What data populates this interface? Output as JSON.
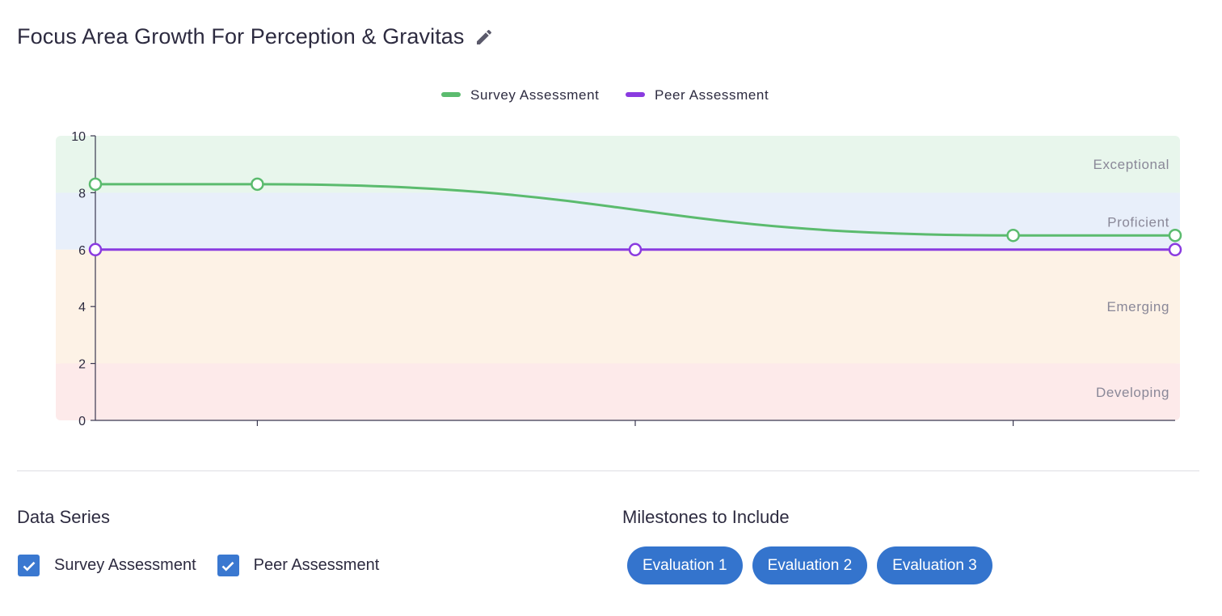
{
  "header": {
    "title": "Focus Area Growth For Perception & Gravitas",
    "edit_icon": "pencil-icon"
  },
  "chart_data": {
    "type": "line",
    "y_ticks": [
      "0",
      "2",
      "4",
      "6",
      "8",
      "10"
    ],
    "ylim": [
      0,
      10
    ],
    "grid": false,
    "legend_position": "top-center",
    "bands": [
      {
        "label": "Exceptional",
        "from": 8,
        "to": 10,
        "color": "#e8f6ec"
      },
      {
        "label": "Proficient",
        "from": 6,
        "to": 8,
        "color": "#e8effa"
      },
      {
        "label": "Emerging",
        "from": 2,
        "to": 6,
        "color": "#fdf2e6"
      },
      {
        "label": "Developing",
        "from": 0,
        "to": 2,
        "color": "#fdeaea"
      }
    ],
    "series": [
      {
        "name": "Survey Assessment",
        "color": "#5bbb6e",
        "points": [
          [
            0,
            8.3
          ],
          [
            0.15,
            8.3
          ],
          [
            0.85,
            6.5
          ],
          [
            1,
            6.5
          ]
        ]
      },
      {
        "name": "Peer Assessment",
        "color": "#8a3be0",
        "points": [
          [
            0,
            6.0
          ],
          [
            0.5,
            6.0
          ],
          [
            1,
            6.0
          ]
        ]
      }
    ],
    "x_ticks": [
      0.15,
      0.5,
      0.85
    ]
  },
  "controls": {
    "data_series_title": "Data Series",
    "milestones_title": "Milestones to Include",
    "series_toggles": [
      {
        "label": "Survey Assessment",
        "checked": true
      },
      {
        "label": "Peer Assessment",
        "checked": true
      }
    ],
    "milestones": [
      "Evaluation 1",
      "Evaluation 2",
      "Evaluation 3"
    ]
  },
  "colors": {
    "checkbox": "#3a78d0",
    "chip": "#3474cd"
  }
}
